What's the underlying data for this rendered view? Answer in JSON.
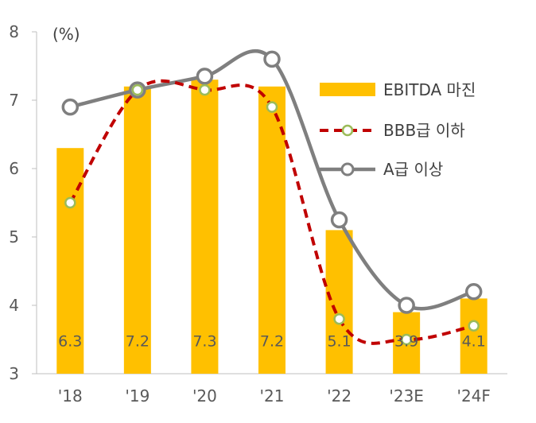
{
  "chart_data": {
    "type": "bar",
    "unit": "(%)",
    "categories": [
      "'18",
      "'19",
      "'20",
      "'21",
      "'22",
      "'23E",
      "'24F"
    ],
    "ylim": [
      3,
      8
    ],
    "yticks": [
      3,
      4,
      5,
      6,
      7,
      8
    ],
    "grid": false,
    "legend_position": "right",
    "series": [
      {
        "name": "EBITDA 마진",
        "type": "bar",
        "color": "#FFC000",
        "values": [
          6.3,
          7.2,
          7.3,
          7.2,
          5.1,
          3.9,
          4.1
        ],
        "labels": [
          "6.3",
          "7.2",
          "7.3",
          "7.2",
          "5.1",
          "3.9",
          "4.1"
        ]
      },
      {
        "name": "BBB급 이하",
        "type": "line",
        "style": "dashed",
        "color": "#C00000",
        "marker_color": "#9BBB59",
        "values": [
          5.5,
          7.15,
          7.15,
          6.9,
          3.8,
          3.5,
          3.7
        ]
      },
      {
        "name": "A급 이상",
        "type": "line",
        "style": "solid",
        "color": "#7F7F7F",
        "values": [
          6.9,
          7.15,
          7.35,
          7.6,
          5.25,
          4.0,
          4.2
        ]
      }
    ]
  }
}
